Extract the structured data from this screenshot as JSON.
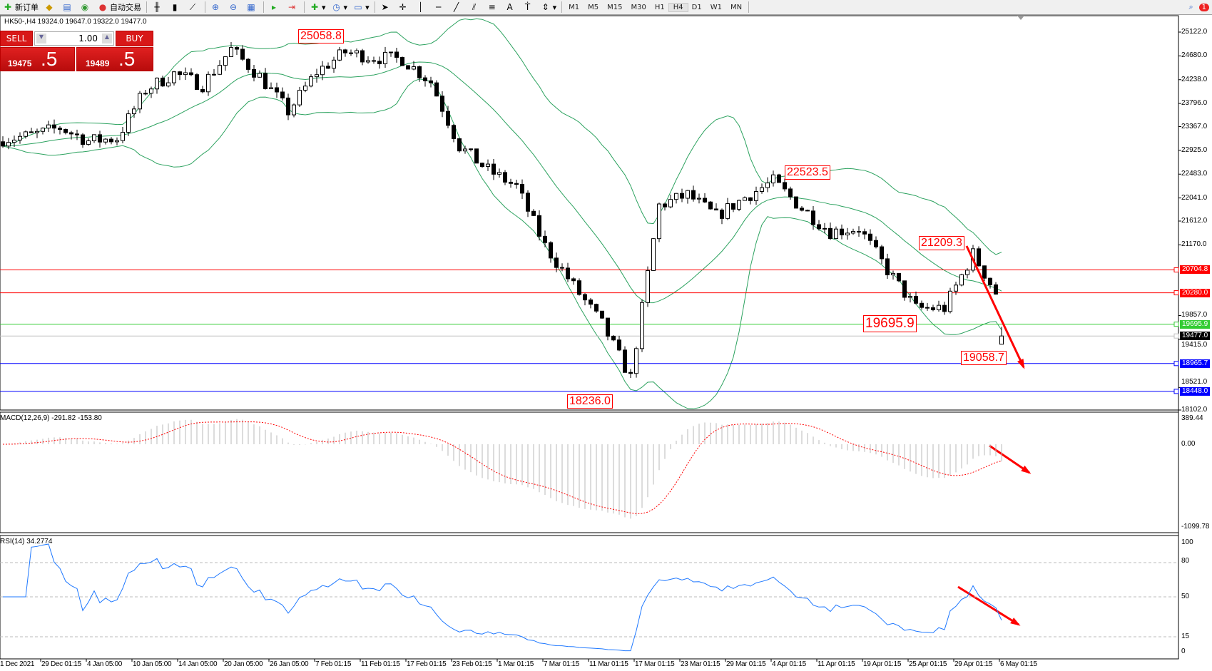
{
  "toolbar": {
    "new_order": "新订单",
    "auto_trading": "自动交易",
    "timeframes": [
      "M1",
      "M5",
      "M15",
      "M30",
      "H1",
      "H4",
      "D1",
      "W1",
      "MN"
    ],
    "active_timeframe": "H4",
    "notifications": "1"
  },
  "symbol_info": "HK50-,H4  19324.0 19647.0 19322.0 19477.0",
  "trade_panel": {
    "sell_label": "SELL",
    "buy_label": "BUY",
    "lot": "1.00",
    "sell_price_main": "19475",
    "sell_price_pips": ".5",
    "buy_price_main": "19489",
    "buy_price_pips": ".5",
    "color": "#d81818"
  },
  "price_axis": {
    "ticks": [
      "25122.0",
      "24680.0",
      "24238.0",
      "23796.0",
      "23367.0",
      "22925.0",
      "22483.0",
      "22041.0",
      "21612.0",
      "21170.0",
      "19857.0",
      "19415.0",
      "18521.0",
      "18102.0"
    ]
  },
  "hlines": [
    {
      "value": "20704.8",
      "color": "#ff0000"
    },
    {
      "value": "20280.0",
      "color": "#ff0000"
    },
    {
      "value": "19695.9",
      "color": "#33cc33"
    },
    {
      "value": "19477.0",
      "color": "#000000",
      "line": "#c0c0c0"
    },
    {
      "value": "18965.7",
      "color": "#0000ff"
    },
    {
      "value": "18448.0",
      "color": "#0000ff"
    }
  ],
  "price_labels": [
    "25058.8",
    "22523.5",
    "21209.3",
    "19695.9",
    "19058.7",
    "18236.0"
  ],
  "macd": {
    "label": "MACD(12,26,9) -291.82 -153.80",
    "ticks": [
      "389.44",
      "0.00",
      "-1099.78"
    ]
  },
  "rsi": {
    "label": "RSI(14) 34.2774",
    "ticks": [
      "100",
      "80",
      "50",
      "15",
      "0"
    ]
  },
  "time_axis": [
    "1 Dec 2021",
    "29 Dec 01:15",
    "4 Jan 05:00",
    "10 Jan 05:00",
    "14 Jan 05:00",
    "20 Jan 05:00",
    "26 Jan 05:00",
    "7 Feb 01:15",
    "11 Feb 01:15",
    "17 Feb 01:15",
    "23 Feb 01:15",
    "1 Mar 01:15",
    "7 Mar 01:15",
    "11 Mar 01:15",
    "17 Mar 01:15",
    "23 Mar 01:15",
    "29 Mar 01:15",
    "4 Apr 01:15",
    "11 Apr 01:15",
    "19 Apr 01:15",
    "25 Apr 01:15",
    "29 Apr 01:15",
    "6 May 01:15"
  ],
  "chart_data": {
    "type": "candlestick",
    "symbol": "HK50",
    "timeframe": "H4",
    "close_path_every_5_bars": [
      23135,
      23200,
      23347,
      23100,
      23150,
      24050,
      24350,
      24142,
      24800,
      24300,
      23650,
      24380,
      24750,
      24650,
      24620,
      24200,
      23000,
      22560,
      22250,
      21150,
      20406,
      19700,
      18700,
      21900,
      22100,
      21700,
      22050,
      22350,
      21850,
      21413,
      21480,
      20700,
      19990,
      19995,
      21000,
      20100,
      19477
    ],
    "ylim": [
      18102,
      25122
    ],
    "bollinger_bands": true,
    "macd_range": [
      -1099.78,
      389.44
    ],
    "rsi_levels": [
      80,
      50,
      15
    ]
  }
}
